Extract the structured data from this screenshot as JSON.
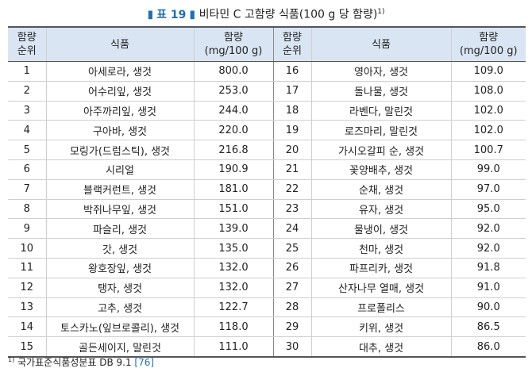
{
  "caption": {
    "bar_left": "▮",
    "tag": "표 19",
    "bar_right": "▮",
    "title": "비타민 C 고함량 식품(100 g 당 함량)",
    "note_mark": "1)"
  },
  "table": {
    "headers": {
      "rank_line1": "함량",
      "rank_line2": "순위",
      "food": "식품",
      "amount_line1": "함량",
      "amount_line2": "(mg/100 g)"
    },
    "rows": [
      {
        "rank_l": "1",
        "food_l": "아세로라, 생것",
        "amount_l": "800.0",
        "rank_r": "16",
        "food_r": "영아자, 생것",
        "amount_r": "109.0"
      },
      {
        "rank_l": "2",
        "food_l": "어수리잎, 생것",
        "amount_l": "253.0",
        "rank_r": "17",
        "food_r": "돌나물, 생것",
        "amount_r": "108.0"
      },
      {
        "rank_l": "3",
        "food_l": "아주까리잎, 생것",
        "amount_l": "244.0",
        "rank_r": "18",
        "food_r": "라벤다, 말린것",
        "amount_r": "102.0"
      },
      {
        "rank_l": "4",
        "food_l": "구아바, 생것",
        "amount_l": "220.0",
        "rank_r": "19",
        "food_r": "로즈마리, 말린것",
        "amount_r": "102.0"
      },
      {
        "rank_l": "5",
        "food_l": "모링가(드럼스틱), 생것",
        "amount_l": "216.8",
        "rank_r": "20",
        "food_r": "가시오갈피 순, 생것",
        "amount_r": "100.7"
      },
      {
        "rank_l": "6",
        "food_l": "시리얼",
        "amount_l": "190.9",
        "rank_r": "21",
        "food_r": "꽃양배추, 생것",
        "amount_r": "99.0"
      },
      {
        "rank_l": "7",
        "food_l": "블랙커런트, 생것",
        "amount_l": "181.0",
        "rank_r": "22",
        "food_r": "순채, 생것",
        "amount_r": "97.0"
      },
      {
        "rank_l": "8",
        "food_l": "박쥐나무잎, 생것",
        "amount_l": "151.0",
        "rank_r": "23",
        "food_r": "유자, 생것",
        "amount_r": "95.0"
      },
      {
        "rank_l": "9",
        "food_l": "파슬리, 생것",
        "amount_l": "139.0",
        "rank_r": "24",
        "food_r": "물냉이, 생것",
        "amount_r": "92.0"
      },
      {
        "rank_l": "10",
        "food_l": "갓, 생것",
        "amount_l": "135.0",
        "rank_r": "25",
        "food_r": "천마, 생것",
        "amount_r": "92.0"
      },
      {
        "rank_l": "11",
        "food_l": "왕호장잎, 생것",
        "amount_l": "132.0",
        "rank_r": "26",
        "food_r": "파프리카, 생것",
        "amount_r": "91.8"
      },
      {
        "rank_l": "12",
        "food_l": "탱자, 생것",
        "amount_l": "132.0",
        "rank_r": "27",
        "food_r": "산자나무 열매, 생것",
        "amount_r": "91.0"
      },
      {
        "rank_l": "13",
        "food_l": "고추, 생것",
        "amount_l": "122.7",
        "rank_r": "28",
        "food_r": "프로폴리스",
        "amount_r": "90.0"
      },
      {
        "rank_l": "14",
        "food_l": "토스카노(잎브로콜리), 생것",
        "amount_l": "118.0",
        "rank_r": "29",
        "food_r": "키위, 생것",
        "amount_r": "86.5"
      },
      {
        "rank_l": "15",
        "food_l": "골든세이지, 말린것",
        "amount_l": "111.0",
        "rank_r": "30",
        "food_r": "대추, 생것",
        "amount_r": "86.0"
      }
    ]
  },
  "footnote": {
    "mark": "1)",
    "text": "국가표준식품성분표 DB 9.1",
    "ref": "[76]"
  },
  "colors": {
    "accent": "#1f6fb2",
    "header_bg": "#d9e5f2"
  }
}
